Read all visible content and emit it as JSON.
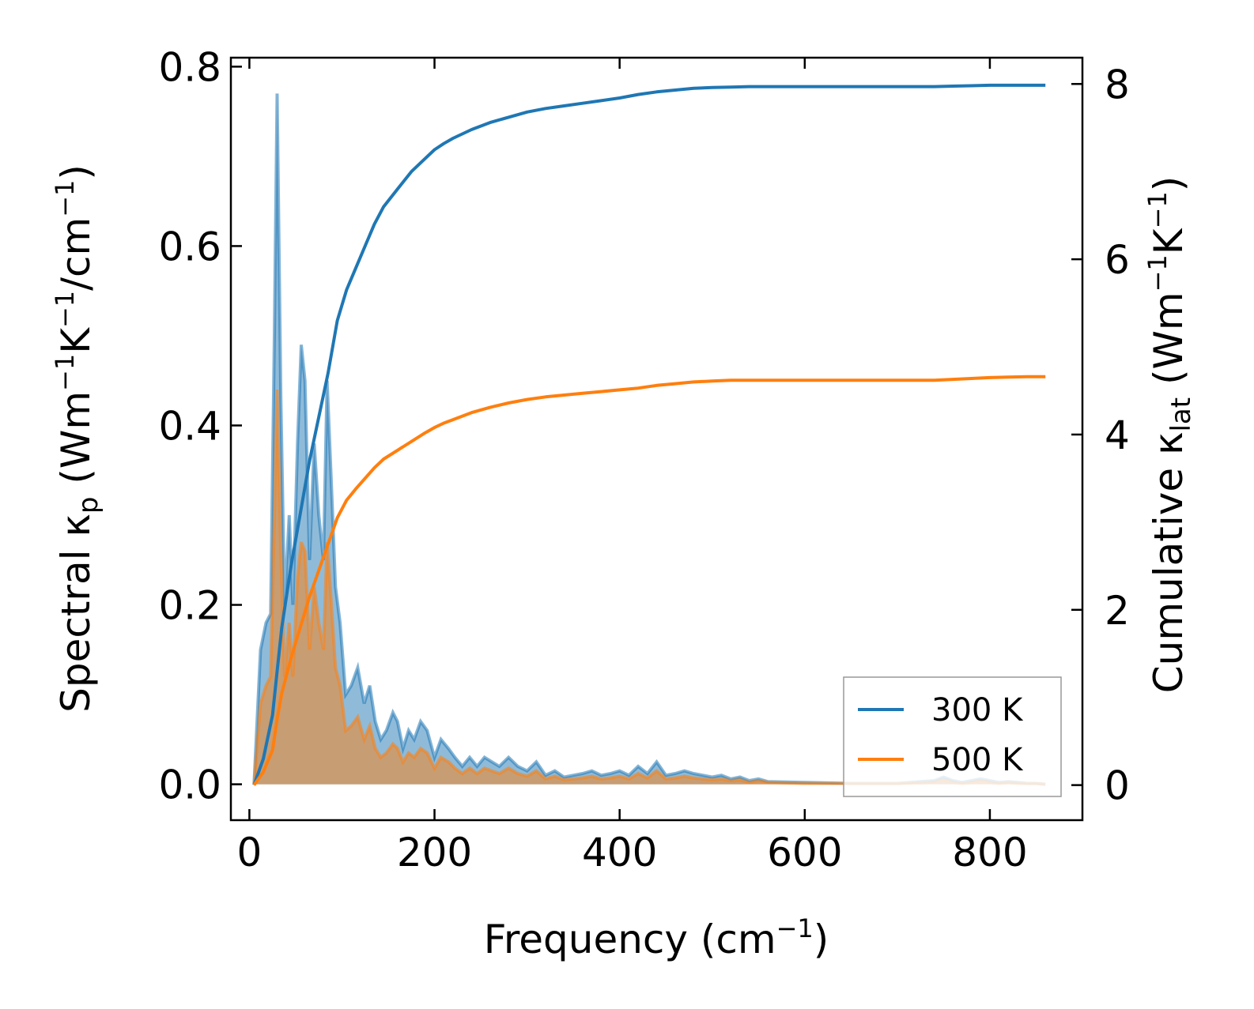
{
  "chart_data": {
    "type": "area+line",
    "title": "",
    "xlabel": {
      "main": "Frequency (cm",
      "sup": "−1",
      "close": ")"
    },
    "ylabel_left": {
      "pre": "Spectral κ",
      "sub": "p",
      "post": " (Wm",
      "sup1": "−1",
      "mid": "K",
      "sup2": "−1",
      "tail": "/cm",
      "sup3": "−1",
      "close": ")"
    },
    "ylabel_right": {
      "pre": "Cumulative κ",
      "sub": "lat",
      "post": " (Wm",
      "sup1": "−1",
      "mid": "K",
      "sup2": "−1",
      "close": ")"
    },
    "xlim": [
      -20,
      900
    ],
    "ylim_left": [
      -0.04,
      0.81
    ],
    "ylim_right": [
      -0.4,
      8.3
    ],
    "xticks": [
      0,
      200,
      400,
      600,
      800
    ],
    "xtick_labels": [
      "0",
      "200",
      "400",
      "600",
      "800"
    ],
    "yticks_left": [
      0.0,
      0.2,
      0.4,
      0.6,
      0.8
    ],
    "ytick_labels_left": [
      "0.0",
      "0.2",
      "0.4",
      "0.6",
      "0.8"
    ],
    "yticks_right": [
      0,
      2,
      4,
      6,
      8
    ],
    "ytick_labels_right": [
      "0",
      "2",
      "4",
      "6",
      "8"
    ],
    "legend": {
      "position": "lower right",
      "entries": [
        "300 K",
        "500 K"
      ]
    },
    "colors": {
      "blue": "#1f77b4",
      "orange": "#ff7f0e",
      "blue_fill": "#1f77b4",
      "orange_fill": "#ff7f0e",
      "brown_overlap": "#c49a6c"
    },
    "spectral_x": [
      5,
      12,
      18,
      23,
      27,
      30,
      34,
      38,
      43,
      47,
      52,
      56,
      60,
      65,
      70,
      75,
      80,
      84,
      88,
      93,
      98,
      104,
      110,
      117,
      124,
      130,
      136,
      142,
      148,
      155,
      160,
      166,
      172,
      178,
      185,
      192,
      200,
      207,
      215,
      222,
      230,
      238,
      246,
      254,
      262,
      270,
      280,
      290,
      300,
      310,
      320,
      330,
      340,
      350,
      360,
      370,
      380,
      390,
      400,
      410,
      420,
      430,
      440,
      450,
      460,
      470,
      480,
      490,
      500,
      510,
      520,
      530,
      540,
      550,
      560,
      600,
      650,
      700,
      740,
      750,
      760,
      770,
      780,
      790,
      800,
      810,
      820,
      830,
      840,
      850,
      860
    ],
    "spectral_300": [
      0.0,
      0.15,
      0.18,
      0.19,
      0.5,
      0.77,
      0.43,
      0.2,
      0.3,
      0.2,
      0.38,
      0.49,
      0.45,
      0.25,
      0.38,
      0.3,
      0.25,
      0.45,
      0.35,
      0.22,
      0.18,
      0.1,
      0.11,
      0.13,
      0.09,
      0.11,
      0.07,
      0.05,
      0.06,
      0.08,
      0.07,
      0.04,
      0.06,
      0.05,
      0.07,
      0.06,
      0.03,
      0.05,
      0.04,
      0.03,
      0.02,
      0.03,
      0.02,
      0.03,
      0.025,
      0.02,
      0.03,
      0.02,
      0.015,
      0.025,
      0.01,
      0.015,
      0.008,
      0.01,
      0.012,
      0.015,
      0.01,
      0.012,
      0.015,
      0.01,
      0.02,
      0.012,
      0.025,
      0.01,
      0.012,
      0.015,
      0.012,
      0.01,
      0.008,
      0.01,
      0.006,
      0.008,
      0.004,
      0.006,
      0.003,
      0.002,
      0.001,
      0.001,
      0.004,
      0.008,
      0.004,
      0.002,
      0.004,
      0.006,
      0.004,
      0.002,
      0.003,
      0.002,
      0.001,
      0.001,
      0.0
    ],
    "spectral_500": [
      0.0,
      0.09,
      0.11,
      0.12,
      0.3,
      0.44,
      0.26,
      0.12,
      0.18,
      0.12,
      0.23,
      0.27,
      0.26,
      0.15,
      0.22,
      0.18,
      0.15,
      0.27,
      0.21,
      0.13,
      0.11,
      0.06,
      0.065,
      0.075,
      0.05,
      0.065,
      0.04,
      0.03,
      0.035,
      0.045,
      0.04,
      0.025,
      0.035,
      0.03,
      0.04,
      0.035,
      0.018,
      0.03,
      0.025,
      0.018,
      0.012,
      0.018,
      0.012,
      0.018,
      0.015,
      0.012,
      0.018,
      0.012,
      0.009,
      0.015,
      0.006,
      0.009,
      0.005,
      0.006,
      0.007,
      0.009,
      0.006,
      0.007,
      0.009,
      0.006,
      0.012,
      0.007,
      0.015,
      0.006,
      0.007,
      0.009,
      0.007,
      0.006,
      0.005,
      0.006,
      0.004,
      0.005,
      0.002,
      0.004,
      0.002,
      0.001,
      0.001,
      0.001,
      0.002,
      0.005,
      0.002,
      0.001,
      0.002,
      0.004,
      0.002,
      0.001,
      0.002,
      0.001,
      0.001,
      0.001,
      0.0
    ],
    "cumulative_x": [
      5,
      15,
      25,
      30,
      35,
      45,
      55,
      65,
      75,
      85,
      95,
      105,
      115,
      125,
      135,
      145,
      160,
      175,
      190,
      200,
      210,
      220,
      240,
      260,
      280,
      300,
      320,
      340,
      360,
      380,
      400,
      420,
      440,
      460,
      480,
      500,
      520,
      540,
      560,
      600,
      650,
      700,
      740,
      760,
      780,
      800,
      820,
      840,
      860
    ],
    "cumulative_300": [
      0.0,
      0.3,
      0.8,
      1.3,
      1.8,
      2.5,
      3.1,
      3.7,
      4.2,
      4.7,
      5.3,
      5.65,
      5.9,
      6.15,
      6.4,
      6.6,
      6.8,
      7.0,
      7.15,
      7.25,
      7.32,
      7.38,
      7.48,
      7.56,
      7.62,
      7.68,
      7.72,
      7.75,
      7.78,
      7.81,
      7.84,
      7.88,
      7.91,
      7.93,
      7.95,
      7.96,
      7.965,
      7.97,
      7.97,
      7.97,
      7.97,
      7.97,
      7.97,
      7.975,
      7.98,
      7.985,
      7.985,
      7.985,
      7.985
    ],
    "cumulative_500": [
      0.0,
      0.15,
      0.4,
      0.75,
      1.05,
      1.45,
      1.8,
      2.15,
      2.45,
      2.75,
      3.05,
      3.25,
      3.38,
      3.5,
      3.62,
      3.72,
      3.82,
      3.92,
      4.02,
      4.08,
      4.13,
      4.17,
      4.25,
      4.31,
      4.36,
      4.4,
      4.43,
      4.45,
      4.47,
      4.49,
      4.51,
      4.53,
      4.56,
      4.58,
      4.6,
      4.61,
      4.62,
      4.62,
      4.62,
      4.62,
      4.62,
      4.62,
      4.62,
      4.63,
      4.64,
      4.65,
      4.655,
      4.66,
      4.66
    ]
  }
}
